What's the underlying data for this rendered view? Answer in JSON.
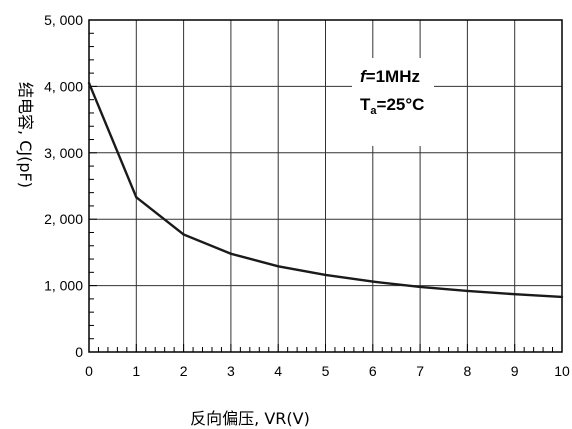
{
  "chart_data": {
    "type": "line",
    "title": "",
    "xlabel": "反向偏压, VR(V)",
    "ylabel": "结电容, CJ(pF)",
    "xlim": [
      0,
      10
    ],
    "ylim": [
      0,
      5000
    ],
    "grid": true,
    "x_ticks": [
      "0",
      "1",
      "2",
      "3",
      "4",
      "5",
      "6",
      "7",
      "8",
      "9",
      "10"
    ],
    "y_ticks": [
      "0",
      "1, 000",
      "2, 000",
      "3, 000",
      "4, 000",
      "5, 000"
    ],
    "x": [
      0,
      1,
      2,
      3,
      4,
      5,
      6,
      7,
      8,
      9,
      10
    ],
    "y": [
      4050,
      2330,
      1770,
      1480,
      1290,
      1160,
      1060,
      980,
      920,
      870,
      830
    ],
    "annotation": {
      "f_symbol": "f",
      "f_text": "=1MHz",
      "t_symbol": "T",
      "t_sub": "a",
      "t_text": "=25°C"
    }
  }
}
